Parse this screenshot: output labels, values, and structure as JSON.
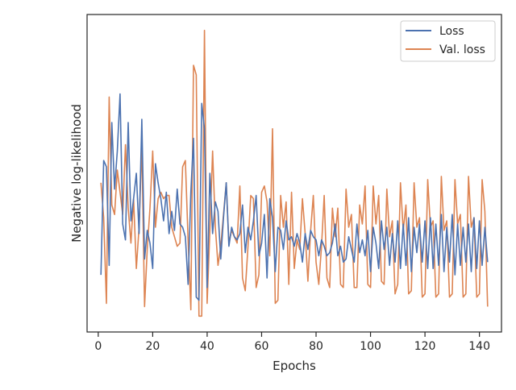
{
  "chart_data": {
    "type": "line",
    "title": "",
    "xlabel": "Epochs",
    "ylabel": "Negative log-likelihood",
    "xlim": [
      -4.1,
      148.1
    ],
    "ylim": [
      0,
      100
    ],
    "xticks": [
      0,
      20,
      40,
      60,
      80,
      100,
      120,
      140
    ],
    "xtick_labels": [
      "0",
      "20",
      "40",
      "60",
      "80",
      "100",
      "120",
      "140"
    ],
    "yticks_shown": false,
    "grid": false,
    "legend_position": "top-right",
    "series": [
      {
        "name": "Loss",
        "color": "#4c72b0",
        "x": [
          1,
          2,
          3,
          4,
          5,
          6,
          7,
          8,
          9,
          10,
          11,
          12,
          13,
          14,
          15,
          16,
          17,
          18,
          19,
          20,
          21,
          22,
          23,
          24,
          25,
          26,
          27,
          28,
          29,
          30,
          31,
          32,
          33,
          34,
          35,
          36,
          37,
          38,
          39,
          40,
          41,
          42,
          43,
          44,
          45,
          46,
          47,
          48,
          49,
          50,
          51,
          52,
          53,
          54,
          55,
          56,
          57,
          58,
          59,
          60,
          61,
          62,
          63,
          64,
          65,
          66,
          67,
          68,
          69,
          70,
          71,
          72,
          73,
          74,
          75,
          76,
          77,
          78,
          79,
          80,
          81,
          82,
          83,
          84,
          85,
          86,
          87,
          88,
          89,
          90,
          91,
          92,
          93,
          94,
          95,
          96,
          97,
          98,
          99,
          100,
          101,
          102,
          103,
          104,
          105,
          106,
          107,
          108,
          109,
          110,
          111,
          112,
          113,
          114,
          115,
          116,
          117,
          118,
          119,
          120,
          121,
          122,
          123,
          124,
          125,
          126,
          127,
          128,
          129,
          130,
          131,
          132,
          133,
          134,
          135,
          136,
          137,
          138,
          139,
          140,
          141,
          142,
          143
        ],
        "y": [
          18,
          54,
          52,
          21,
          66,
          45,
          57,
          75,
          34,
          29,
          66,
          35,
          42,
          50,
          31,
          67,
          23,
          32,
          28,
          20,
          53,
          47,
          42,
          35,
          44,
          31,
          38,
          32,
          45,
          34,
          33,
          30,
          15,
          44,
          61,
          11,
          10,
          72,
          64,
          14,
          50,
          31,
          41,
          38,
          23,
          36,
          47,
          27,
          33,
          30,
          29,
          31,
          40,
          25,
          33,
          29,
          35,
          43,
          24,
          28,
          37,
          17,
          42,
          36,
          19,
          33,
          32,
          26,
          35,
          29,
          30,
          27,
          31,
          28,
          22,
          31,
          26,
          32,
          30,
          29,
          24,
          29,
          27,
          24,
          25,
          28,
          34,
          24,
          27,
          22,
          23,
          30,
          26,
          22,
          34,
          25,
          29,
          24,
          32,
          19,
          33,
          28,
          20,
          35,
          26,
          33,
          21,
          31,
          22,
          35,
          20,
          34,
          21,
          36,
          19,
          33,
          25,
          34,
          22,
          35,
          20,
          36,
          20,
          34,
          21,
          37,
          19,
          33,
          22,
          37,
          18,
          34,
          21,
          33,
          22,
          34,
          19,
          36,
          20,
          35,
          21,
          33,
          22
        ]
      },
      {
        "name": "Val. loss",
        "color": "#dd8452",
        "x": [
          1,
          2,
          3,
          4,
          5,
          6,
          7,
          8,
          9,
          10,
          11,
          12,
          13,
          14,
          15,
          16,
          17,
          18,
          19,
          20,
          21,
          22,
          23,
          24,
          25,
          26,
          27,
          28,
          29,
          30,
          31,
          32,
          33,
          34,
          35,
          36,
          37,
          38,
          39,
          40,
          41,
          42,
          43,
          44,
          45,
          46,
          47,
          48,
          49,
          50,
          51,
          52,
          53,
          54,
          55,
          56,
          57,
          58,
          59,
          60,
          61,
          62,
          63,
          64,
          65,
          66,
          67,
          68,
          69,
          70,
          71,
          72,
          73,
          74,
          75,
          76,
          77,
          78,
          79,
          80,
          81,
          82,
          83,
          84,
          85,
          86,
          87,
          88,
          89,
          90,
          91,
          92,
          93,
          94,
          95,
          96,
          97,
          98,
          99,
          100,
          101,
          102,
          103,
          104,
          105,
          106,
          107,
          108,
          109,
          110,
          111,
          112,
          113,
          114,
          115,
          116,
          117,
          118,
          119,
          120,
          121,
          122,
          123,
          124,
          125,
          126,
          127,
          128,
          129,
          130,
          131,
          132,
          133,
          134,
          135,
          136,
          137,
          138,
          139,
          140,
          141,
          142,
          143
        ],
        "y": [
          47,
          36,
          9,
          74,
          40,
          37,
          51,
          44,
          37,
          59,
          39,
          28,
          42,
          20,
          33,
          59,
          8,
          26,
          39,
          57,
          33,
          42,
          44,
          42,
          43,
          43,
          33,
          30,
          27,
          28,
          52,
          54,
          29,
          7,
          84,
          81,
          5,
          5,
          95,
          9,
          32,
          57,
          33,
          21,
          27,
          37,
          47,
          28,
          32,
          30,
          28,
          46,
          17,
          13,
          27,
          43,
          42,
          14,
          18,
          44,
          46,
          41,
          24,
          64,
          9,
          10,
          43,
          33,
          41,
          15,
          44,
          20,
          29,
          26,
          42,
          31,
          16,
          32,
          43,
          22,
          15,
          27,
          43,
          17,
          14,
          39,
          30,
          39,
          15,
          14,
          45,
          33,
          37,
          14,
          14,
          40,
          34,
          46,
          15,
          14,
          46,
          34,
          43,
          16,
          15,
          45,
          30,
          35,
          12,
          15,
          47,
          32,
          40,
          12,
          13,
          47,
          33,
          36,
          11,
          12,
          48,
          33,
          35,
          11,
          12,
          49,
          32,
          35,
          11,
          12,
          48,
          34,
          37,
          11,
          12,
          49,
          33,
          36,
          11,
          12,
          48,
          38,
          8
        ]
      }
    ]
  }
}
